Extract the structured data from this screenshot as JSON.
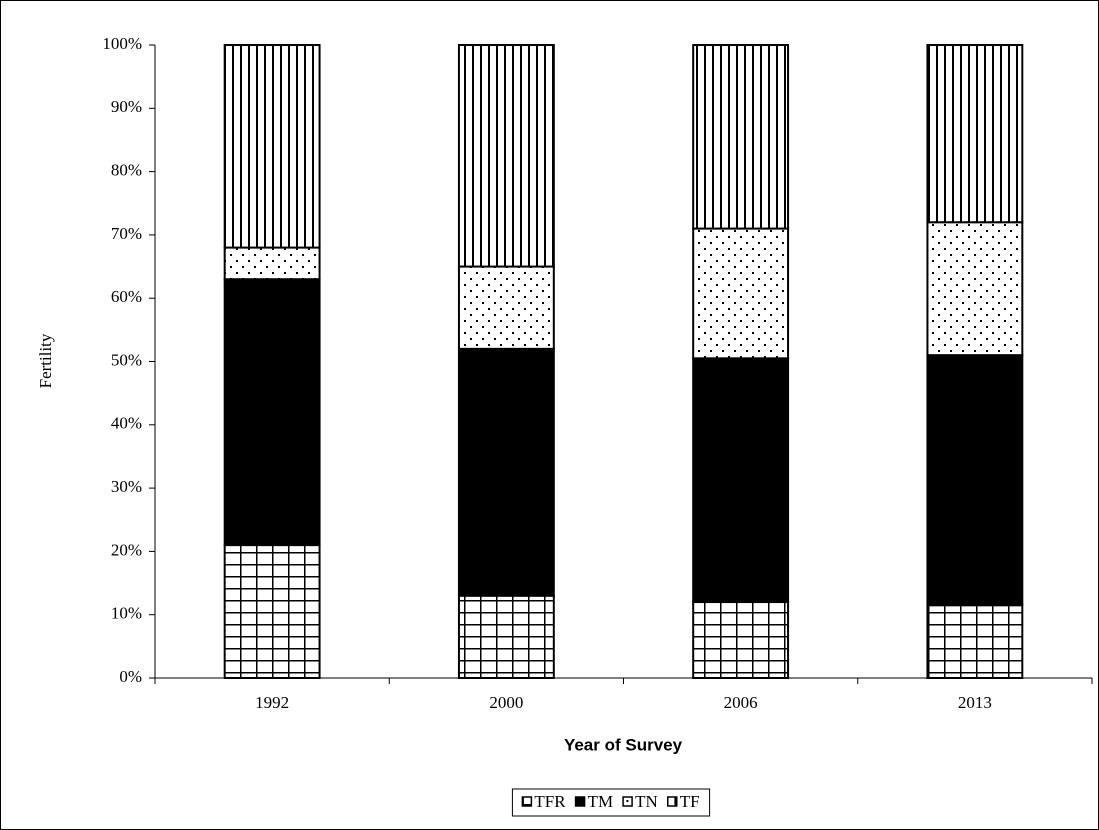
{
  "chart_data": {
    "type": "stacked_bar_100",
    "x_label": "Year of Survey",
    "y_label": "Fertility",
    "categories": [
      "1992",
      "2000",
      "2006",
      "2013"
    ],
    "series": [
      {
        "name": "TFR",
        "pattern": "grid",
        "values": [
          21,
          13,
          12,
          11.5
        ]
      },
      {
        "name": "TM",
        "pattern": "solid",
        "values": [
          42,
          39,
          38.5,
          39.5
        ]
      },
      {
        "name": "TN",
        "pattern": "dots",
        "values": [
          5,
          13,
          20.5,
          21
        ]
      },
      {
        "name": "TF",
        "pattern": "vlines",
        "values": [
          32,
          35,
          29,
          28
        ]
      }
    ],
    "ylim": [
      0,
      100
    ],
    "yticks": [
      {
        "value": 0,
        "label": "0%"
      },
      {
        "value": 10,
        "label": "10%"
      },
      {
        "value": 20,
        "label": "20%"
      },
      {
        "value": 30,
        "label": "30%"
      },
      {
        "value": 40,
        "label": "40%"
      },
      {
        "value": 50,
        "label": "50%"
      },
      {
        "value": 60,
        "label": "60%"
      },
      {
        "value": 70,
        "label": "70%"
      },
      {
        "value": 80,
        "label": "80%"
      },
      {
        "value": 90,
        "label": "90%"
      },
      {
        "value": 100,
        "label": "100%"
      }
    ],
    "legend": "bottom"
  }
}
